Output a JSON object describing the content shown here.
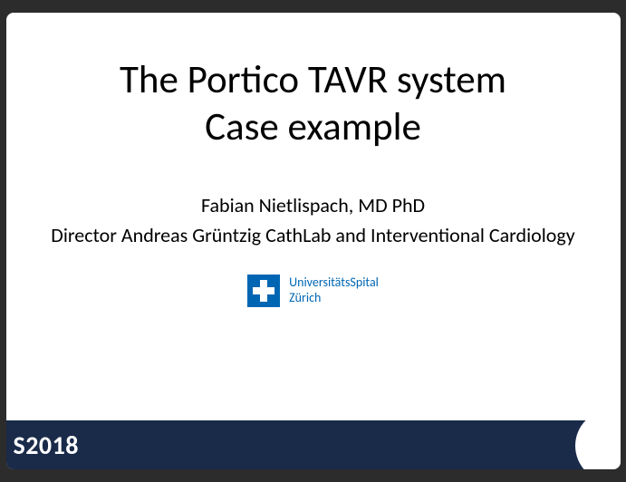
{
  "slide": {
    "title_line1": "The Portico TAVR system",
    "title_line2": "Case example",
    "presenter_name": "Fabian Nietlispach, MD PhD",
    "presenter_title": "Director Andreas Grüntzig CathLab and Interventional Cardiology",
    "institution_line1": "UniversitätsSpital",
    "institution_line2": "Zürich",
    "background_color": "#ffffff",
    "title_fontsize": 43,
    "presenter_fontsize": 22,
    "logo_color": "#0066b3"
  },
  "footer": {
    "text": "S2018",
    "background_color": "#1a2b4a",
    "text_color": "#ffffff",
    "fontsize": 28
  }
}
